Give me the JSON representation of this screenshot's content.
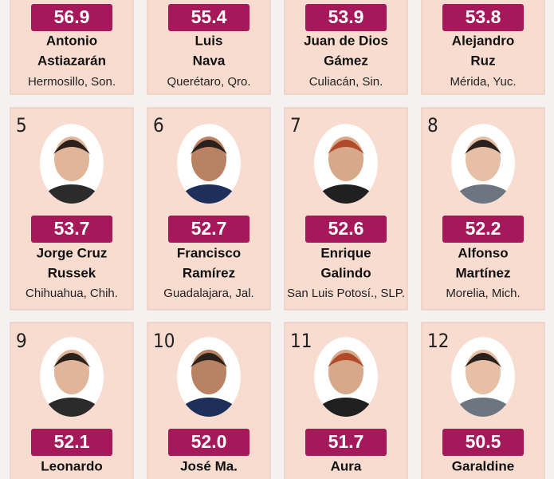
{
  "cards": [
    {
      "score": "56.9",
      "name": [
        "Antonio",
        "Astiazarán"
      ],
      "city": "Hermosillo, Son."
    },
    {
      "score": "55.4",
      "name": [
        "Luis",
        "Nava"
      ],
      "city": "Querétaro, Qro."
    },
    {
      "score": "53.9",
      "name": [
        "Juan de Dios",
        "Gámez"
      ],
      "city": "Culiacán, Sin."
    },
    {
      "score": "53.8",
      "name": [
        "Alejandro",
        "Ruz"
      ],
      "city": "Mérida, Yuc."
    },
    {
      "rank": "5",
      "score": "53.7",
      "name": [
        "Jorge Cruz",
        "Russek"
      ],
      "city": "Chihuahua, Chih."
    },
    {
      "rank": "6",
      "score": "52.7",
      "name": [
        "Francisco",
        "Ramírez"
      ],
      "city": "Guadalajara, Jal."
    },
    {
      "rank": "7",
      "score": "52.6",
      "name": [
        "Enrique",
        "Galindo"
      ],
      "city": "San Luis Potosí., SLP."
    },
    {
      "rank": "8",
      "score": "52.2",
      "name": [
        "Alfonso",
        "Martínez"
      ],
      "city": "Morelia, Mich."
    },
    {
      "rank": "9",
      "score": "52.1",
      "name": [
        "Leonardo"
      ]
    },
    {
      "rank": "10",
      "score": "52.0",
      "name": [
        "José Ma."
      ]
    },
    {
      "rank": "11",
      "score": "51.7",
      "name": [
        "Aura"
      ]
    },
    {
      "rank": "12",
      "score": "50.5",
      "name": [
        "Garaldine"
      ]
    }
  ]
}
